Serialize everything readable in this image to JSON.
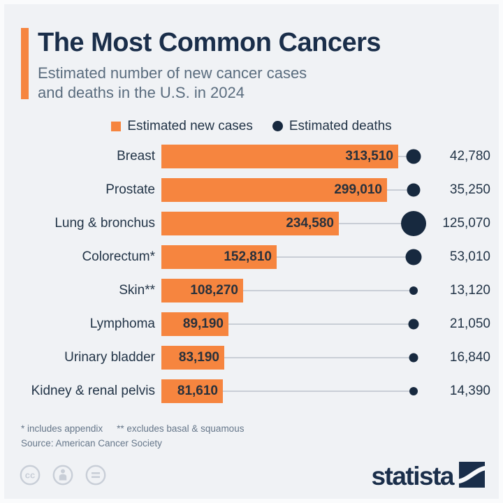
{
  "header": {
    "title": "The Most Common Cancers",
    "subtitle_line1": "Estimated number of new cancer cases",
    "subtitle_line2": "and deaths in the U.S. in 2024"
  },
  "legend": {
    "new_cases_label": "Estimated new cases",
    "deaths_label": "Estimated deaths"
  },
  "chart_data": {
    "type": "bar",
    "orientation": "horizontal",
    "title": "The Most Common Cancers",
    "subtitle": "Estimated number of new cancer cases and deaths in the U.S. in 2024",
    "legend_position": "top",
    "grid": false,
    "xlim": [
      0,
      313510
    ],
    "categories": [
      "Breast",
      "Prostate",
      "Lung & bronchus",
      "Colorectum*",
      "Skin**",
      "Lymphoma",
      "Urinary bladder",
      "Kidney & renal pelvis"
    ],
    "series": [
      {
        "name": "Estimated new cases",
        "mark": "bar",
        "color": "#F6853F",
        "values": [
          313510,
          299010,
          234580,
          152810,
          108270,
          89190,
          83190,
          81610
        ]
      },
      {
        "name": "Estimated deaths",
        "mark": "sized-dot",
        "color": "#17293F",
        "values": [
          42780,
          35250,
          125070,
          53010,
          13120,
          21050,
          16840,
          14390
        ]
      }
    ],
    "rows": [
      {
        "label": "Breast",
        "new_cases": 313510,
        "new_cases_label": "313,510",
        "deaths": 42780,
        "deaths_label": "42,780"
      },
      {
        "label": "Prostate",
        "new_cases": 299010,
        "new_cases_label": "299,010",
        "deaths": 35250,
        "deaths_label": "35,250"
      },
      {
        "label": "Lung & bronchus",
        "new_cases": 234580,
        "new_cases_label": "234,580",
        "deaths": 125070,
        "deaths_label": "125,070"
      },
      {
        "label": "Colorectum*",
        "new_cases": 152810,
        "new_cases_label": "152,810",
        "deaths": 53010,
        "deaths_label": "53,010"
      },
      {
        "label": "Skin**",
        "new_cases": 108270,
        "new_cases_label": "108,270",
        "deaths": 13120,
        "deaths_label": "13,120"
      },
      {
        "label": "Lymphoma",
        "new_cases": 89190,
        "new_cases_label": "89,190",
        "deaths": 21050,
        "deaths_label": "21,050"
      },
      {
        "label": "Urinary bladder",
        "new_cases": 83190,
        "new_cases_label": "83,190",
        "deaths": 16840,
        "deaths_label": "16,840"
      },
      {
        "label": "Kidney & renal pelvis",
        "new_cases": 81610,
        "new_cases_label": "81,610",
        "deaths": 14390,
        "deaths_label": "14,390"
      }
    ]
  },
  "footnotes": {
    "note1": "* includes appendix",
    "note2": "** excludes basal & squamous",
    "source": "Source: American Cancer Society"
  },
  "branding": {
    "logo_text": "statista"
  },
  "colors": {
    "bar_orange": "#F6853F",
    "dot_navy": "#17293F",
    "title_navy": "#1A2E4A",
    "background": "#F0F2F5",
    "connector": "#C9CED6"
  }
}
